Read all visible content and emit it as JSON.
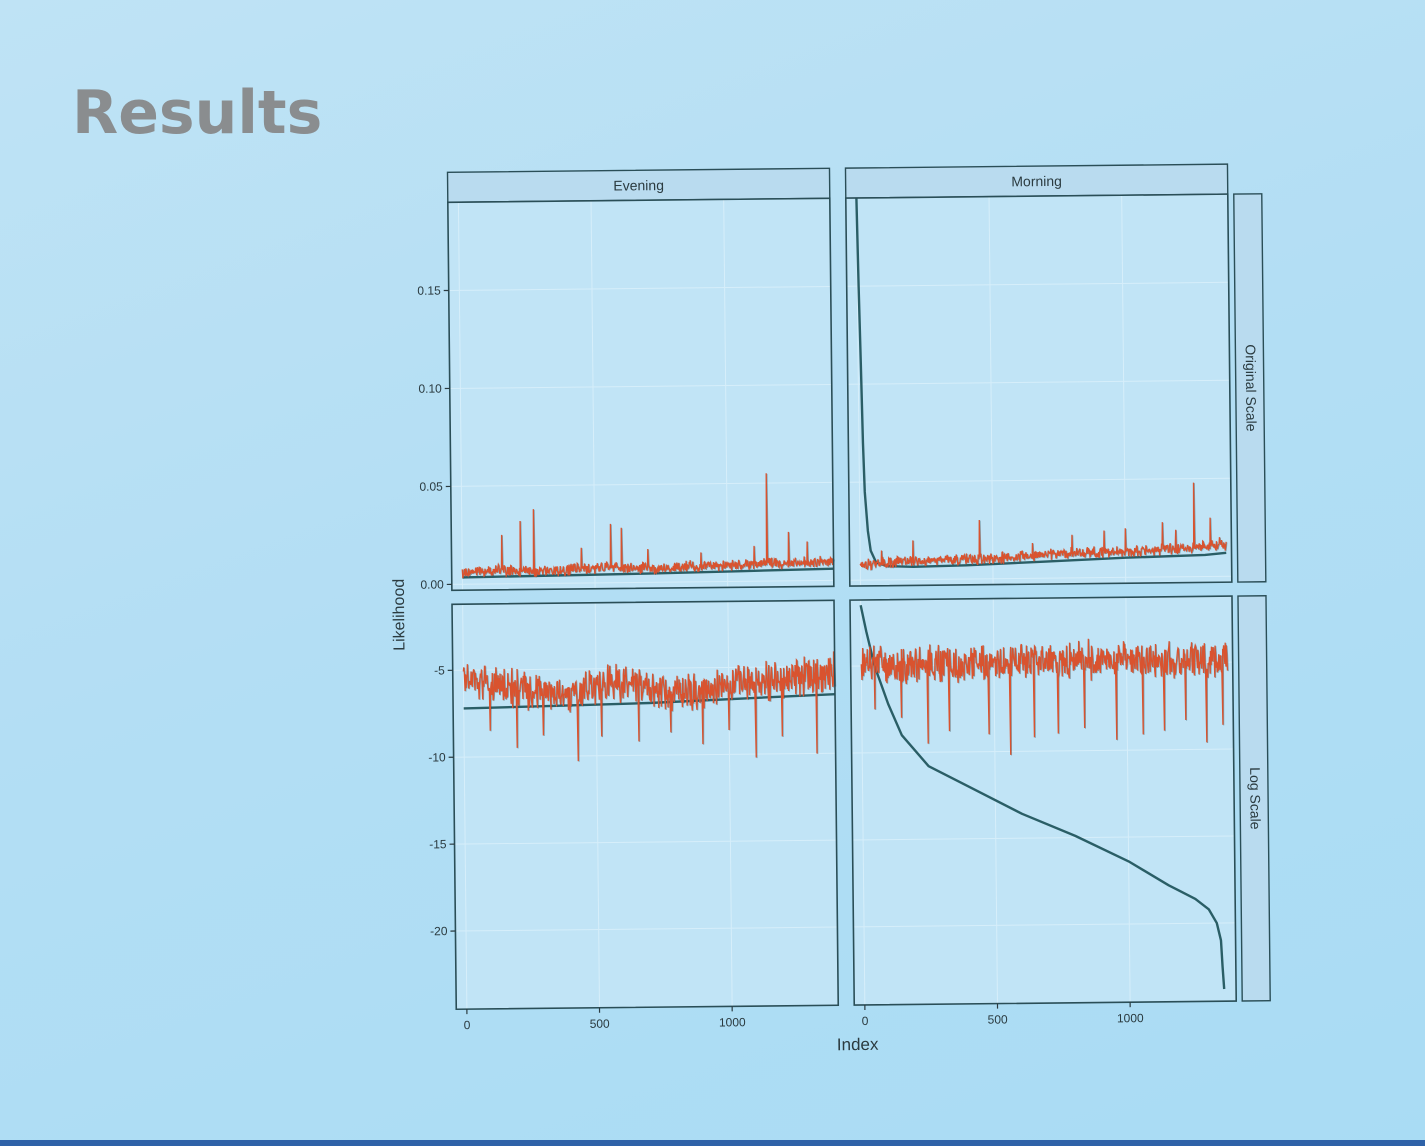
{
  "slide": {
    "title": "Results"
  },
  "colors": {
    "background": "#b3def4",
    "panel_fill": "#c1e4f6",
    "strip_fill": "#b9dbef",
    "frame": "#2a4e57",
    "sorted_line": "#2a5e66",
    "observed_line": "#d9532f"
  },
  "chart_data": {
    "type": "line",
    "layout": "facet-grid",
    "xlabel": "Index",
    "ylabel": "Likelihood",
    "columns": [
      "Evening",
      "Morning"
    ],
    "rows": [
      "Original Scale",
      "Log Scale"
    ],
    "x_ticks": [
      0,
      500,
      1000
    ],
    "y_ticks": {
      "Original Scale": [
        0.0,
        0.05,
        0.1,
        0.15
      ],
      "Log Scale": [
        -5,
        -10,
        -15,
        -20
      ]
    },
    "y_tick_labels": {
      "Original Scale": [
        "0.00",
        "0.05",
        "0.10",
        "0.15"
      ],
      "Log Scale": [
        "-5",
        "-10",
        "-15",
        "-20"
      ]
    },
    "x_tick_labels": [
      "0",
      "500",
      "1000"
    ],
    "grid": true,
    "panels": [
      {
        "column": "Evening",
        "row": "Original Scale",
        "xlim": [
          -40,
          1400
        ],
        "ylim": [
          -0.003,
          0.195
        ],
        "series": [
          {
            "role": "sorted",
            "color": "#2a5e66",
            "x": [
              0,
              350,
              700,
              1050,
              1400
            ],
            "y": [
              0.0035,
              0.004,
              0.0045,
              0.0052,
              0.006
            ]
          },
          {
            "role": "observed",
            "color": "#d9532f",
            "style": "noisy",
            "x": [
              0,
              140,
              280,
              420,
              560,
              700,
              840,
              980,
              1120,
              1260,
              1400
            ],
            "y": [
              0.006,
              0.007,
              0.006,
              0.007,
              0.008,
              0.007,
              0.008,
              0.008,
              0.009,
              0.009,
              0.01
            ],
            "spikes_x": [
              150,
              220,
              270,
              450,
              560,
              600,
              700,
              900,
              1100,
              1150,
              1230,
              1300
            ],
            "spikes_y": [
              0.025,
              0.032,
              0.038,
              0.018,
              0.03,
              0.028,
              0.017,
              0.015,
              0.018,
              0.055,
              0.025,
              0.02
            ]
          }
        ]
      },
      {
        "column": "Morning",
        "row": "Original Scale",
        "xlim": [
          -40,
          1400
        ],
        "ylim": [
          -0.003,
          0.195
        ],
        "series": [
          {
            "role": "sorted",
            "color": "#2a5e66",
            "x": [
              0,
              5,
              10,
              15,
              20,
              30,
              40,
              60,
              100,
              200,
              400,
              700,
              1000,
              1300,
              1380
            ],
            "y": [
              0.195,
              0.15,
              0.11,
              0.07,
              0.045,
              0.025,
              0.015,
              0.009,
              0.007,
              0.0065,
              0.007,
              0.0085,
              0.01,
              0.011,
              0.012
            ]
          },
          {
            "role": "observed",
            "color": "#d9532f",
            "style": "noisy",
            "x": [
              0,
              140,
              280,
              420,
              560,
              700,
              840,
              980,
              1120,
              1260,
              1380
            ],
            "y": [
              0.008,
              0.009,
              0.01,
              0.01,
              0.011,
              0.012,
              0.013,
              0.013,
              0.014,
              0.015,
              0.016
            ],
            "spikes_x": [
              80,
              200,
              450,
              650,
              800,
              920,
              1000,
              1140,
              1190,
              1260,
              1320,
              1355
            ],
            "spikes_y": [
              0.015,
              0.02,
              0.03,
              0.018,
              0.022,
              0.024,
              0.025,
              0.028,
              0.024,
              0.048,
              0.03,
              0.02
            ]
          }
        ]
      },
      {
        "column": "Evening",
        "row": "Log Scale",
        "xlim": [
          -40,
          1400
        ],
        "ylim": [
          -24.5,
          -1.2
        ],
        "series": [
          {
            "role": "sorted",
            "color": "#2a5e66",
            "x": [
              0,
              350,
              700,
              1050,
              1400
            ],
            "y": [
              -7.2,
              -7.1,
              -7.0,
              -6.8,
              -6.6
            ]
          },
          {
            "role": "observed",
            "color": "#d9532f",
            "style": "noisy",
            "x": [
              0,
              140,
              280,
              420,
              560,
              700,
              840,
              980,
              1120,
              1260,
              1400
            ],
            "y": [
              -5.5,
              -6.0,
              -6.3,
              -6.5,
              -5.6,
              -6.2,
              -6.5,
              -6.0,
              -5.8,
              -5.6,
              -5.3
            ],
            "spikes_x": [
              100,
              200,
              300,
              430,
              520,
              660,
              780,
              900,
              1000,
              1100,
              1200,
              1330
            ],
            "spikes_y": [
              -8.5,
              -9.5,
              -8.8,
              -10.3,
              -8.9,
              -9.2,
              -8.7,
              -9.4,
              -8.6,
              -10.2,
              -9.0,
              -10.0
            ]
          }
        ]
      },
      {
        "column": "Morning",
        "row": "Log Scale",
        "xlim": [
          -40,
          1400
        ],
        "ylim": [
          -24.5,
          -1.2
        ],
        "series": [
          {
            "role": "sorted",
            "color": "#2a5e66",
            "x": [
              0,
              20,
              50,
              100,
              150,
              250,
              400,
              600,
              800,
              1000,
              1150,
              1250,
              1300,
              1330,
              1345,
              1350,
              1355
            ],
            "y": [
              -1.5,
              -3.0,
              -5.0,
              -7.2,
              -9.0,
              -10.8,
              -12.0,
              -13.6,
              -14.9,
              -16.4,
              -17.8,
              -18.6,
              -19.2,
              -20.0,
              -21.0,
              -22.5,
              -23.8
            ]
          },
          {
            "role": "observed",
            "color": "#d9532f",
            "style": "noisy",
            "x": [
              0,
              140,
              280,
              420,
              560,
              700,
              840,
              980,
              1120,
              1260,
              1380
            ],
            "y": [
              -4.8,
              -5.0,
              -4.9,
              -5.1,
              -4.8,
              -4.9,
              -4.7,
              -4.8,
              -4.9,
              -4.8,
              -4.9
            ],
            "spikes_x": [
              50,
              150,
              250,
              330,
              480,
              560,
              650,
              740,
              840,
              960,
              1060,
              1140,
              1220,
              1300,
              1360
            ],
            "spikes_y": [
              -7.5,
              -8.0,
              -9.5,
              -8.8,
              -9.0,
              -10.2,
              -9.2,
              -9.0,
              -8.7,
              -9.4,
              -9.1,
              -8.9,
              -8.3,
              -9.6,
              -8.6
            ]
          }
        ]
      }
    ]
  }
}
